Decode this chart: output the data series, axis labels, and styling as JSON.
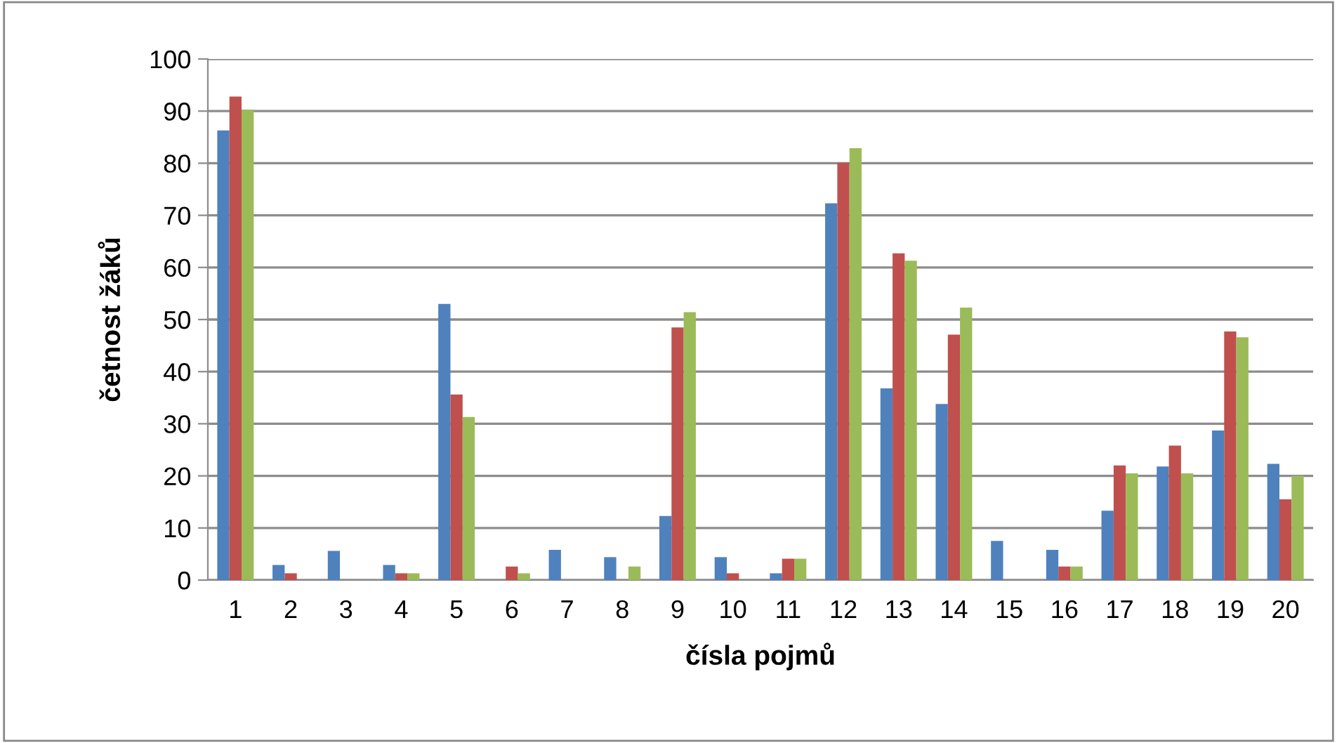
{
  "chart_data": {
    "type": "bar",
    "xlabel": "čísla pojmů",
    "ylabel": "četnost žáků",
    "categories": [
      "1",
      "2",
      "3",
      "4",
      "5",
      "6",
      "7",
      "8",
      "9",
      "10",
      "11",
      "12",
      "13",
      "14",
      "15",
      "16",
      "17",
      "18",
      "19",
      "20"
    ],
    "series": [
      {
        "color": "#4f81bd",
        "values": [
          86.3,
          2.9,
          5.6,
          2.9,
          53,
          0,
          5.8,
          4.4,
          12.3,
          4.4,
          1.3,
          72.3,
          36.8,
          33.8,
          7.5,
          5.8,
          13.3,
          21.8,
          28.7,
          22.3
        ]
      },
      {
        "color": "#c0504d",
        "values": [
          92.8,
          1.3,
          0,
          1.3,
          35.6,
          2.6,
          0,
          0,
          48.5,
          1.3,
          4.1,
          80.1,
          62.7,
          47.1,
          0,
          2.6,
          22,
          25.8,
          47.7,
          15.5
        ]
      },
      {
        "color": "#9bbb59",
        "values": [
          90.3,
          0,
          0,
          1.3,
          31.3,
          1.3,
          0,
          2.6,
          51.4,
          0,
          4.1,
          82.9,
          61.3,
          52.3,
          0,
          2.6,
          20.5,
          20.5,
          46.6,
          20
        ]
      }
    ],
    "ylim": [
      0,
      100
    ],
    "yticks": [
      0,
      10,
      20,
      30,
      40,
      50,
      60,
      70,
      80,
      90,
      100
    ],
    "grid": "y",
    "legend": false
  }
}
